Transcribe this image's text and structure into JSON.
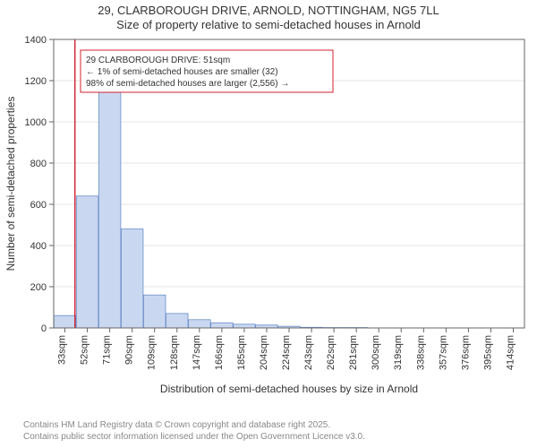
{
  "title": {
    "line1": "29, CLARBOROUGH DRIVE, ARNOLD, NOTTINGHAM, NG5 7LL",
    "line2": "Size of property relative to semi-detached houses in Arnold"
  },
  "chart": {
    "type": "histogram",
    "plot_bg": "#ffffff",
    "border_color": "#666666",
    "grid_color": "#cccccc",
    "bar_fill": "#c9d8f0",
    "bar_stroke": "#6a8bc9",
    "marker_line_color": "#d02030",
    "tick_color": "#333333",
    "tick_fontsize": 11,
    "axis_label_fontsize": 12,
    "ylabel": "Number of semi-detached properties",
    "xlabel": "Distribution of semi-detached houses by size in Arnold",
    "ylim": [
      0,
      1400
    ],
    "ytick_step": 200,
    "x_categories": [
      "33sqm",
      "52sqm",
      "71sqm",
      "90sqm",
      "109sqm",
      "128sqm",
      "147sqm",
      "166sqm",
      "185sqm",
      "204sqm",
      "224sqm",
      "243sqm",
      "262sqm",
      "281sqm",
      "300sqm",
      "319sqm",
      "338sqm",
      "357sqm",
      "376sqm",
      "395sqm",
      "414sqm"
    ],
    "bars": [
      60,
      640,
      1160,
      480,
      160,
      70,
      40,
      25,
      18,
      14,
      8,
      3,
      2,
      2,
      1,
      1,
      1,
      0,
      0,
      0,
      1
    ],
    "marker_x": 51,
    "x_start": 33,
    "x_step": 19,
    "annotation": {
      "lines": [
        "29 CLARBOROUGH DRIVE: 51sqm",
        "← 1% of semi-detached houses are smaller (32)",
        "98% of semi-detached houses are larger (2,556) →"
      ],
      "border_color": "#d02030",
      "bg": "#ffffff",
      "fontsize": 10
    }
  },
  "footer": {
    "line1": "Contains HM Land Registry data © Crown copyright and database right 2025.",
    "line2": "Contains public sector information licensed under the Open Government Licence v3.0."
  }
}
